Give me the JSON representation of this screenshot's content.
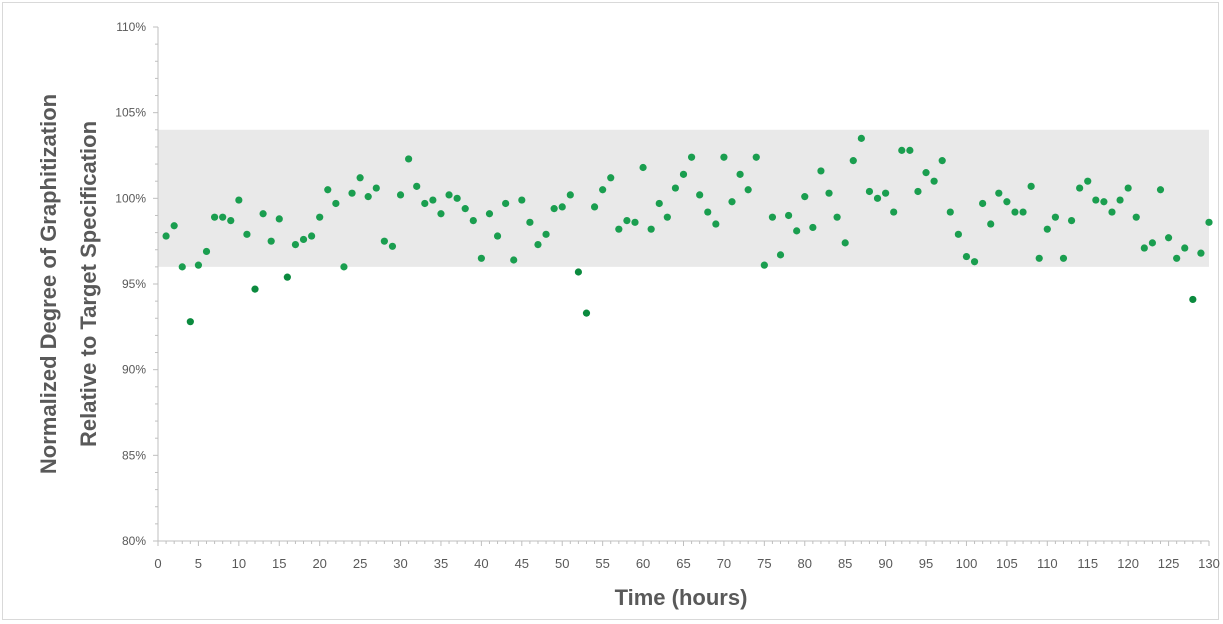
{
  "chart_data": {
    "type": "scatter",
    "title": "",
    "xlabel": "Time (hours)",
    "ylabel_lines": [
      "Normalized Degree of Graphitization",
      "Relative to Target Specification"
    ],
    "xlim": [
      0,
      130
    ],
    "ylim": [
      80,
      110
    ],
    "x_ticks": [
      "0",
      "5",
      "10",
      "15",
      "20",
      "25",
      "30",
      "35",
      "40",
      "45",
      "50",
      "55",
      "60",
      "65",
      "70",
      "75",
      "80",
      "85",
      "90",
      "95",
      "100",
      "105",
      "110",
      "115",
      "120",
      "125",
      "130"
    ],
    "y_ticks": [
      "80%",
      "85%",
      "90%",
      "95%",
      "100%",
      "105%",
      "110%"
    ],
    "spec_band": [
      96,
      104
    ],
    "grid": false,
    "legend": "none",
    "colors": {
      "point": "#1a9e4f",
      "point_outside": "#0b8a3e",
      "band": "#e9e9e9",
      "axis": "#bfbfbf",
      "text": "#595959"
    },
    "series": [
      {
        "x": [
          1,
          2,
          3,
          4,
          5,
          6,
          7,
          8,
          9,
          10,
          11,
          12,
          13,
          14,
          15,
          16,
          17,
          18,
          19,
          20,
          21,
          22,
          23,
          24,
          25,
          26,
          27,
          28,
          29,
          30,
          31,
          32,
          33,
          34,
          35,
          36,
          37,
          38,
          39,
          40,
          41,
          42,
          43,
          44,
          45,
          46,
          47,
          48,
          49,
          50,
          51,
          52,
          53,
          54,
          55,
          56,
          57,
          58,
          59,
          60,
          61,
          62,
          63,
          64,
          65,
          66,
          67,
          68,
          69,
          70,
          71,
          72,
          73,
          74,
          75,
          76,
          77,
          78,
          79,
          80,
          81,
          82,
          83,
          84,
          85,
          86,
          87,
          88,
          89,
          90,
          91,
          92,
          93,
          94,
          95,
          96,
          97,
          98,
          99,
          100,
          101,
          102,
          103,
          104,
          105,
          106,
          107,
          108,
          109,
          110,
          111,
          112,
          113,
          114,
          115,
          116,
          117,
          118,
          119,
          120,
          121,
          122,
          123,
          124,
          125,
          126,
          127,
          128,
          129,
          130
        ],
        "values": [
          97.8,
          98.4,
          96.0,
          92.8,
          96.1,
          96.9,
          98.9,
          98.9,
          98.7,
          99.9,
          97.9,
          94.7,
          99.1,
          97.5,
          98.8,
          95.4,
          97.3,
          97.6,
          97.8,
          98.9,
          100.5,
          99.7,
          96.0,
          100.3,
          101.2,
          100.1,
          100.6,
          97.5,
          97.2,
          100.2,
          102.3,
          100.7,
          99.7,
          99.9,
          99.1,
          100.2,
          100.0,
          99.4,
          98.7,
          96.5,
          99.1,
          97.8,
          99.7,
          96.4,
          99.9,
          98.6,
          97.3,
          97.9,
          99.4,
          99.5,
          100.2,
          95.7,
          93.3,
          99.5,
          100.5,
          101.2,
          98.2,
          98.7,
          98.6,
          101.8,
          98.2,
          99.7,
          98.9,
          100.6,
          101.4,
          102.4,
          100.2,
          99.2,
          98.5,
          102.4,
          99.8,
          101.4,
          100.5,
          102.4,
          96.1,
          98.9,
          96.7,
          99.0,
          98.1,
          100.1,
          98.3,
          101.6,
          100.3,
          98.9,
          97.4,
          102.2,
          103.5,
          100.4,
          100.0,
          100.3,
          99.2,
          102.8,
          102.8,
          100.4,
          101.5,
          101.0,
          102.2,
          99.2,
          97.9,
          96.6,
          96.3,
          99.7,
          98.5,
          100.3,
          99.8,
          99.2,
          99.2,
          100.7,
          96.5,
          98.2,
          98.9,
          96.5,
          98.7,
          100.6,
          101.0,
          99.9,
          99.8,
          99.2,
          99.9,
          100.6,
          98.9,
          97.1,
          97.4,
          100.5,
          97.7,
          96.5,
          97.1,
          94.1,
          96.8,
          98.6
        ]
      }
    ]
  }
}
